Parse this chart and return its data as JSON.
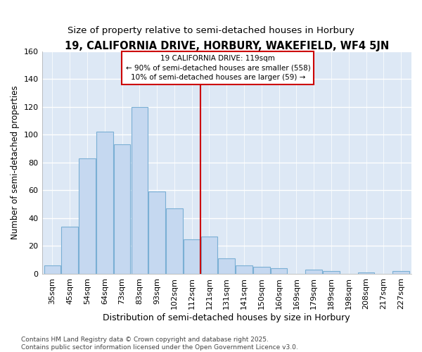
{
  "title": "19, CALIFORNIA DRIVE, HORBURY, WAKEFIELD, WF4 5JN",
  "subtitle": "Size of property relative to semi-detached houses in Horbury",
  "xlabel": "Distribution of semi-detached houses by size in Horbury",
  "ylabel": "Number of semi-detached properties",
  "categories": [
    "35sqm",
    "45sqm",
    "54sqm",
    "64sqm",
    "73sqm",
    "83sqm",
    "93sqm",
    "102sqm",
    "112sqm",
    "121sqm",
    "131sqm",
    "141sqm",
    "150sqm",
    "160sqm",
    "169sqm",
    "179sqm",
    "189sqm",
    "198sqm",
    "208sqm",
    "217sqm",
    "227sqm"
  ],
  "values": [
    6,
    34,
    83,
    102,
    93,
    120,
    59,
    47,
    25,
    27,
    11,
    6,
    5,
    4,
    0,
    3,
    2,
    0,
    1,
    0,
    2
  ],
  "bar_color": "#c5d8f0",
  "bar_edge_color": "#7aafd4",
  "plot_bg_color": "#dde8f5",
  "fig_bg_color": "#ffffff",
  "grid_color": "#ffffff",
  "vline_color": "#cc0000",
  "vline_x_idx": 8.5,
  "annotation_text": "19 CALIFORNIA DRIVE: 119sqm\n← 90% of semi-detached houses are smaller (558)\n10% of semi-detached houses are larger (59) →",
  "annotation_box_color": "#ffffff",
  "annotation_box_edge": "#cc0000",
  "footer_text": "Contains HM Land Registry data © Crown copyright and database right 2025.\nContains public sector information licensed under the Open Government Licence v3.0.",
  "ylim": [
    0,
    160
  ],
  "yticks": [
    0,
    20,
    40,
    60,
    80,
    100,
    120,
    140,
    160
  ],
  "title_fontsize": 10.5,
  "subtitle_fontsize": 9.5,
  "ylabel_fontsize": 8.5,
  "xlabel_fontsize": 9,
  "tick_fontsize": 8,
  "annotation_fontsize": 7.5,
  "footer_fontsize": 6.5
}
